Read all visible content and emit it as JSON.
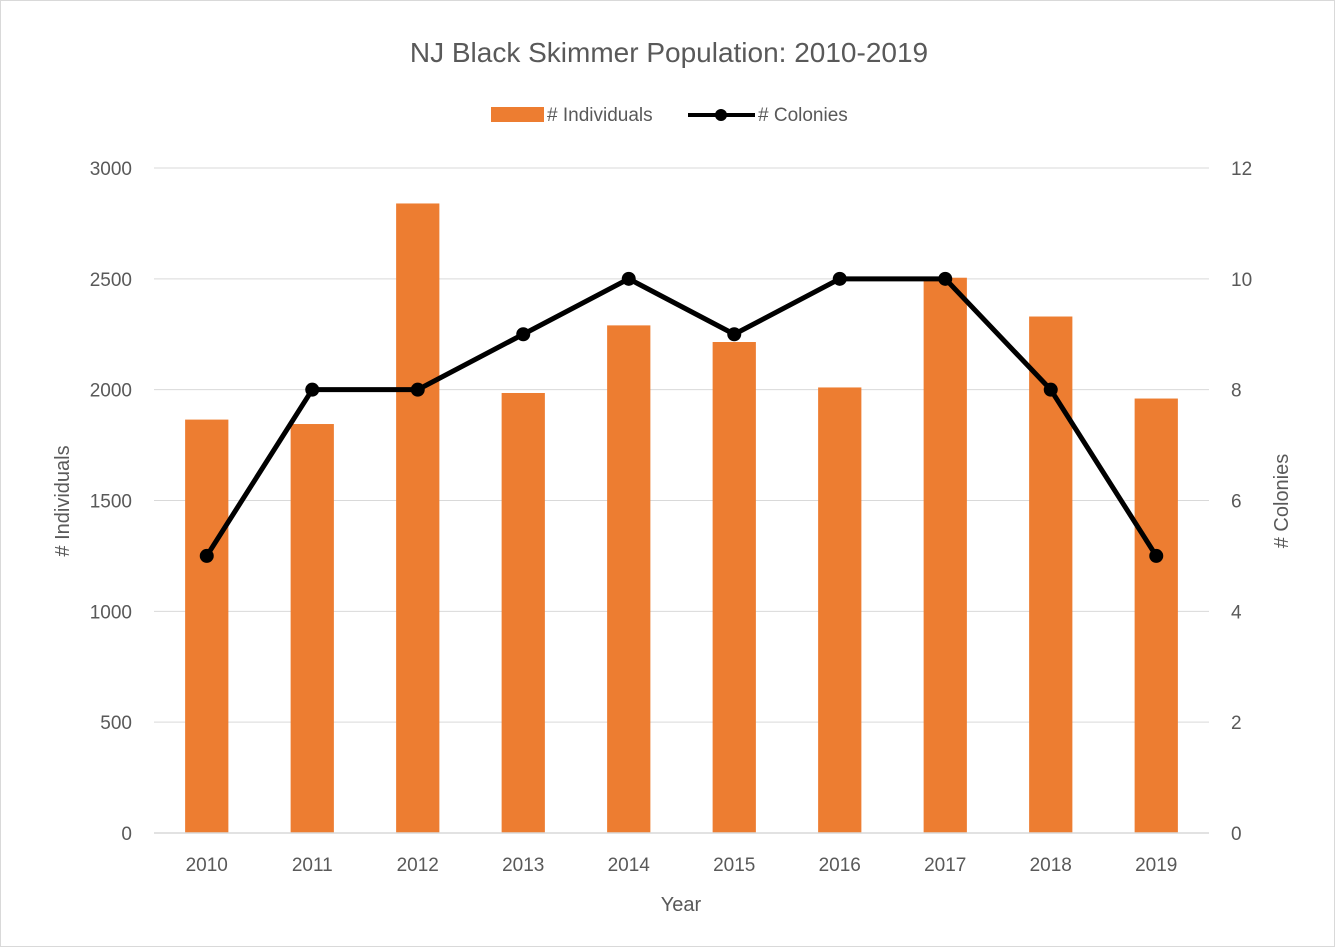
{
  "chart_data": {
    "type": "bar",
    "title": "NJ Black Skimmer Population: 2010-2019",
    "xlabel": "Year",
    "ylabel": "# Individuals",
    "y2label": "# Colonies",
    "categories": [
      "2010",
      "2011",
      "2012",
      "2013",
      "2014",
      "2015",
      "2016",
      "2017",
      "2018",
      "2019"
    ],
    "series": [
      {
        "name": "# Individuals",
        "type": "bar",
        "axis": "left",
        "color": "#ed7d31",
        "values": [
          1865,
          1845,
          2840,
          1985,
          2290,
          2215,
          2010,
          2505,
          2330,
          1960
        ]
      },
      {
        "name": "# Colonies",
        "type": "line",
        "axis": "right",
        "color": "#000000",
        "values": [
          5,
          8,
          8,
          9,
          10,
          9,
          10,
          10,
          8,
          5
        ]
      }
    ],
    "ylim": [
      0,
      3000
    ],
    "y2lim": [
      0,
      12
    ],
    "yticks": [
      "0",
      "500",
      "1000",
      "1500",
      "2000",
      "2500",
      "3000"
    ],
    "y2ticks": [
      "0",
      "2",
      "4",
      "6",
      "8",
      "10",
      "12"
    ],
    "grid": true,
    "legend_position": "top"
  }
}
